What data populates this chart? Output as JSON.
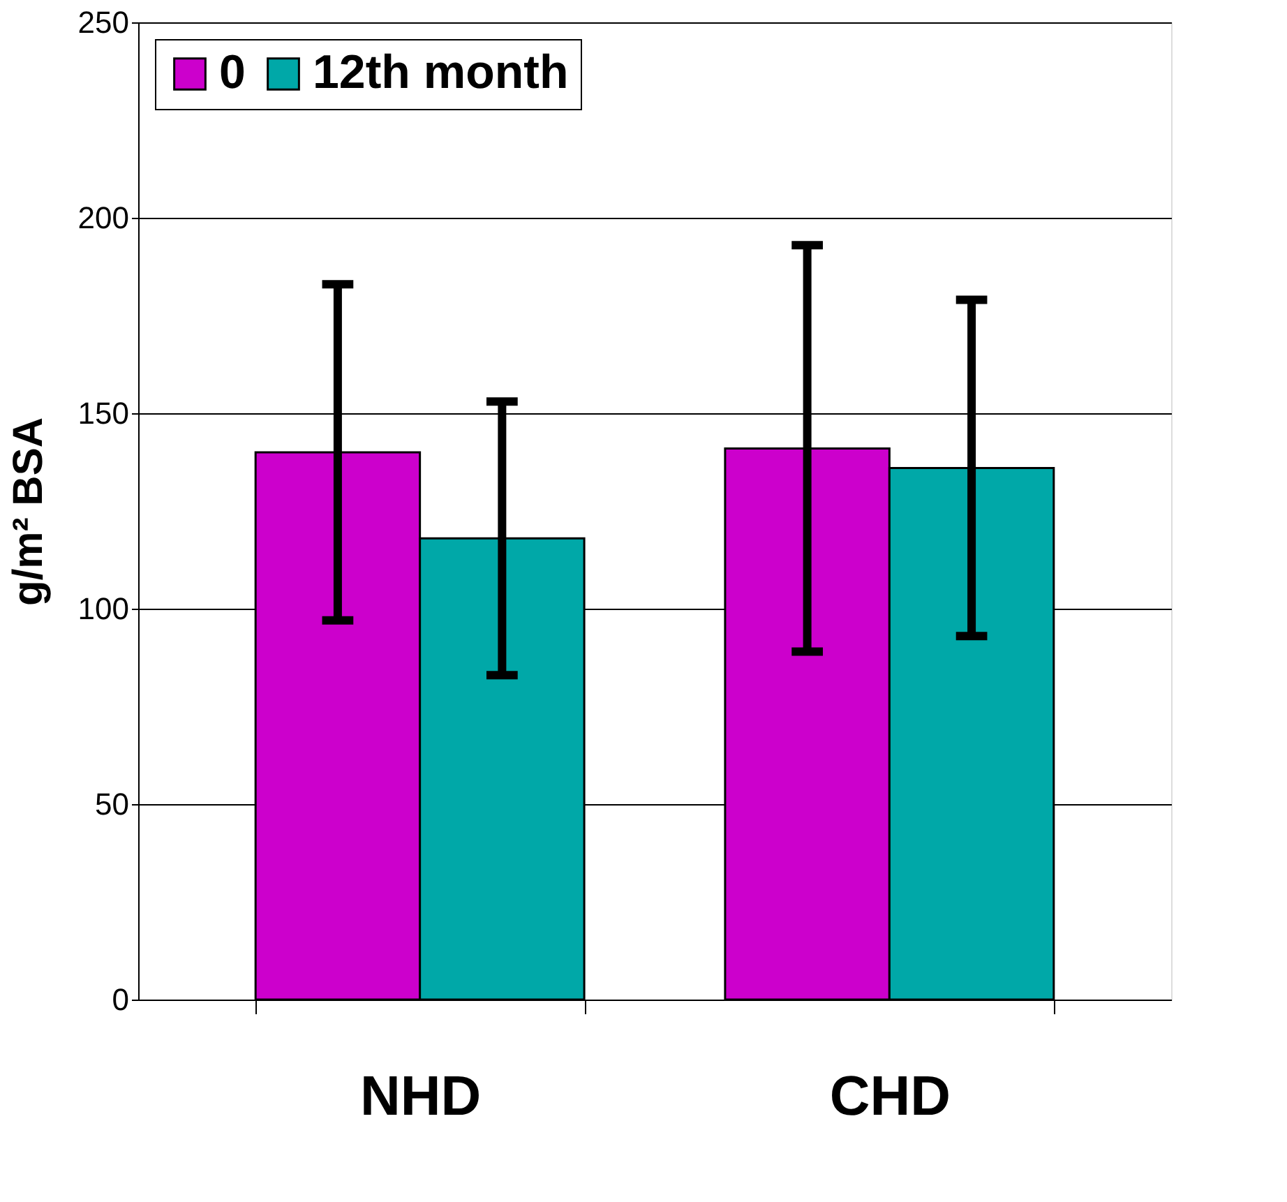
{
  "chart_data": {
    "type": "bar",
    "ylabel": "g/m² BSA",
    "categories": [
      "NHD",
      "CHD"
    ],
    "series": [
      {
        "name": "0",
        "color": "#cc00cc",
        "values": [
          140,
          141
        ],
        "errors": [
          43,
          52
        ]
      },
      {
        "name": "12th month",
        "color": "#00a8a8",
        "values": [
          118,
          136
        ],
        "errors": [
          35,
          43
        ]
      }
    ],
    "ylim": [
      0,
      250
    ],
    "yticks": [
      0,
      50,
      100,
      150,
      200,
      250
    ],
    "grid": "y",
    "legend": "top left"
  }
}
